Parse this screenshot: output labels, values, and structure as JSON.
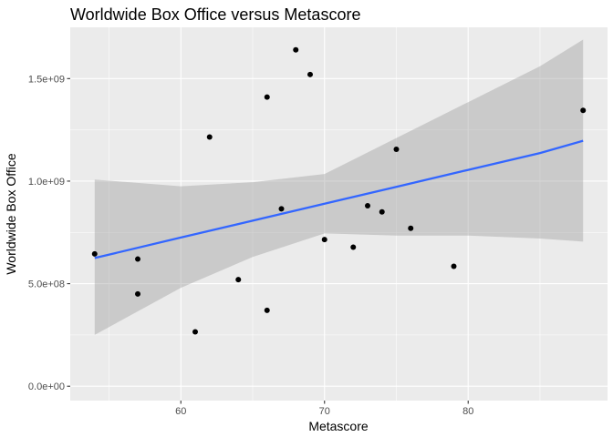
{
  "chart_data": {
    "type": "scatter",
    "title": "Worldwide Box Office versus Metascore",
    "xlabel": "Metascore",
    "ylabel": "Worldwide Box Office",
    "xlim": [
      52.3,
      89.7
    ],
    "ylim": [
      -70000000.0,
      1750000000.0
    ],
    "x_ticks": [
      60,
      70,
      80
    ],
    "x_tick_labels": [
      "60",
      "70",
      "80"
    ],
    "x_minor_ticks": [
      55,
      65,
      75,
      85
    ],
    "y_ticks": [
      0,
      500000000,
      1000000000,
      1500000000
    ],
    "y_tick_labels": [
      "0.0e+00",
      "5.0e+08",
      "1.0e+09",
      "1.5e+09"
    ],
    "y_minor_ticks": [
      250000000,
      750000000,
      1250000000
    ],
    "grid": true,
    "colors": {
      "panel": "#EBEBEB",
      "grid": "#FFFFFF",
      "points": "#000000",
      "smooth_line": "#3366FF",
      "confidence_band": "#999999"
    },
    "points": [
      {
        "x": 54,
        "y": 645000000
      },
      {
        "x": 57,
        "y": 620000000
      },
      {
        "x": 57,
        "y": 450000000
      },
      {
        "x": 61,
        "y": 265000000
      },
      {
        "x": 62,
        "y": 1215000000
      },
      {
        "x": 64,
        "y": 520000000
      },
      {
        "x": 66,
        "y": 1410000000
      },
      {
        "x": 66,
        "y": 370000000
      },
      {
        "x": 67,
        "y": 865000000
      },
      {
        "x": 68,
        "y": 1640000000
      },
      {
        "x": 69,
        "y": 1520000000
      },
      {
        "x": 70,
        "y": 715000000
      },
      {
        "x": 72,
        "y": 678000000
      },
      {
        "x": 73,
        "y": 880000000
      },
      {
        "x": 74,
        "y": 850000000
      },
      {
        "x": 75,
        "y": 1155000000
      },
      {
        "x": 76,
        "y": 770000000
      },
      {
        "x": 79,
        "y": 585000000
      },
      {
        "x": 88,
        "y": 1345000000
      }
    ],
    "smooth": {
      "method": "lm",
      "x": [
        54,
        60,
        65,
        70,
        75,
        80,
        85,
        88
      ],
      "fit": [
        625000000,
        725000000,
        807000000,
        890000000,
        972000000,
        1055000000,
        1137000000,
        1197000000
      ],
      "lower": [
        250000000,
        480000000,
        630000000,
        745000000,
        735000000,
        735000000,
        720000000,
        705000000
      ],
      "upper": [
        1008000000,
        975000000,
        995000000,
        1035000000,
        1210000000,
        1385000000,
        1560000000,
        1690000000
      ]
    }
  }
}
